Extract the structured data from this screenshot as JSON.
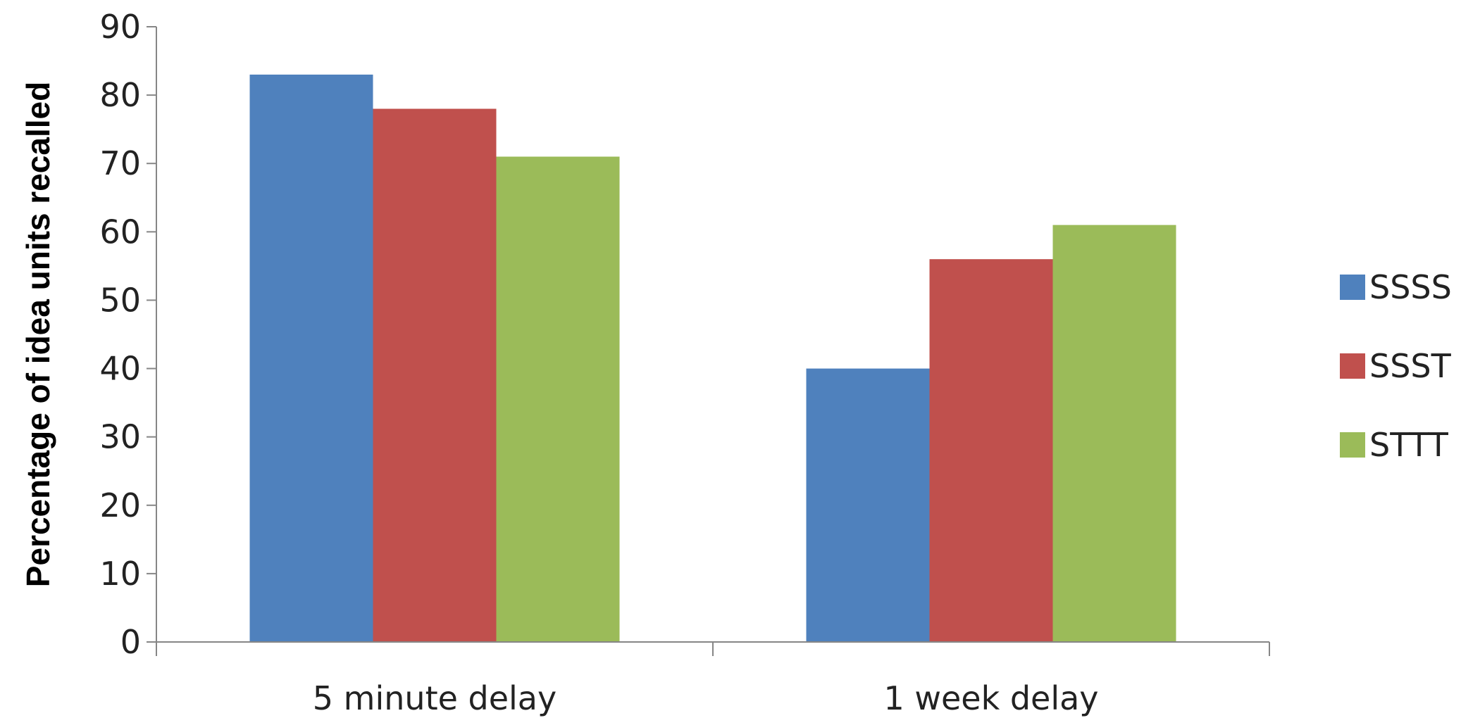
{
  "chart_data": {
    "type": "bar",
    "categories": [
      "5 minute delay",
      "1 week delay"
    ],
    "series": [
      {
        "name": "SSSS",
        "values": [
          83,
          40
        ],
        "color": "#4F81BD"
      },
      {
        "name": "SSST",
        "values": [
          78,
          56
        ],
        "color": "#C0504D"
      },
      {
        "name": "STTT",
        "values": [
          71,
          61
        ],
        "color": "#9BBB59"
      }
    ],
    "title": "",
    "xlabel": "",
    "ylabel": "Percentage of idea units recalled",
    "ylim": [
      0,
      90
    ],
    "yticks": [
      0,
      10,
      20,
      30,
      40,
      50,
      60,
      70,
      80,
      90
    ],
    "grid": false,
    "legend_position": "right"
  }
}
